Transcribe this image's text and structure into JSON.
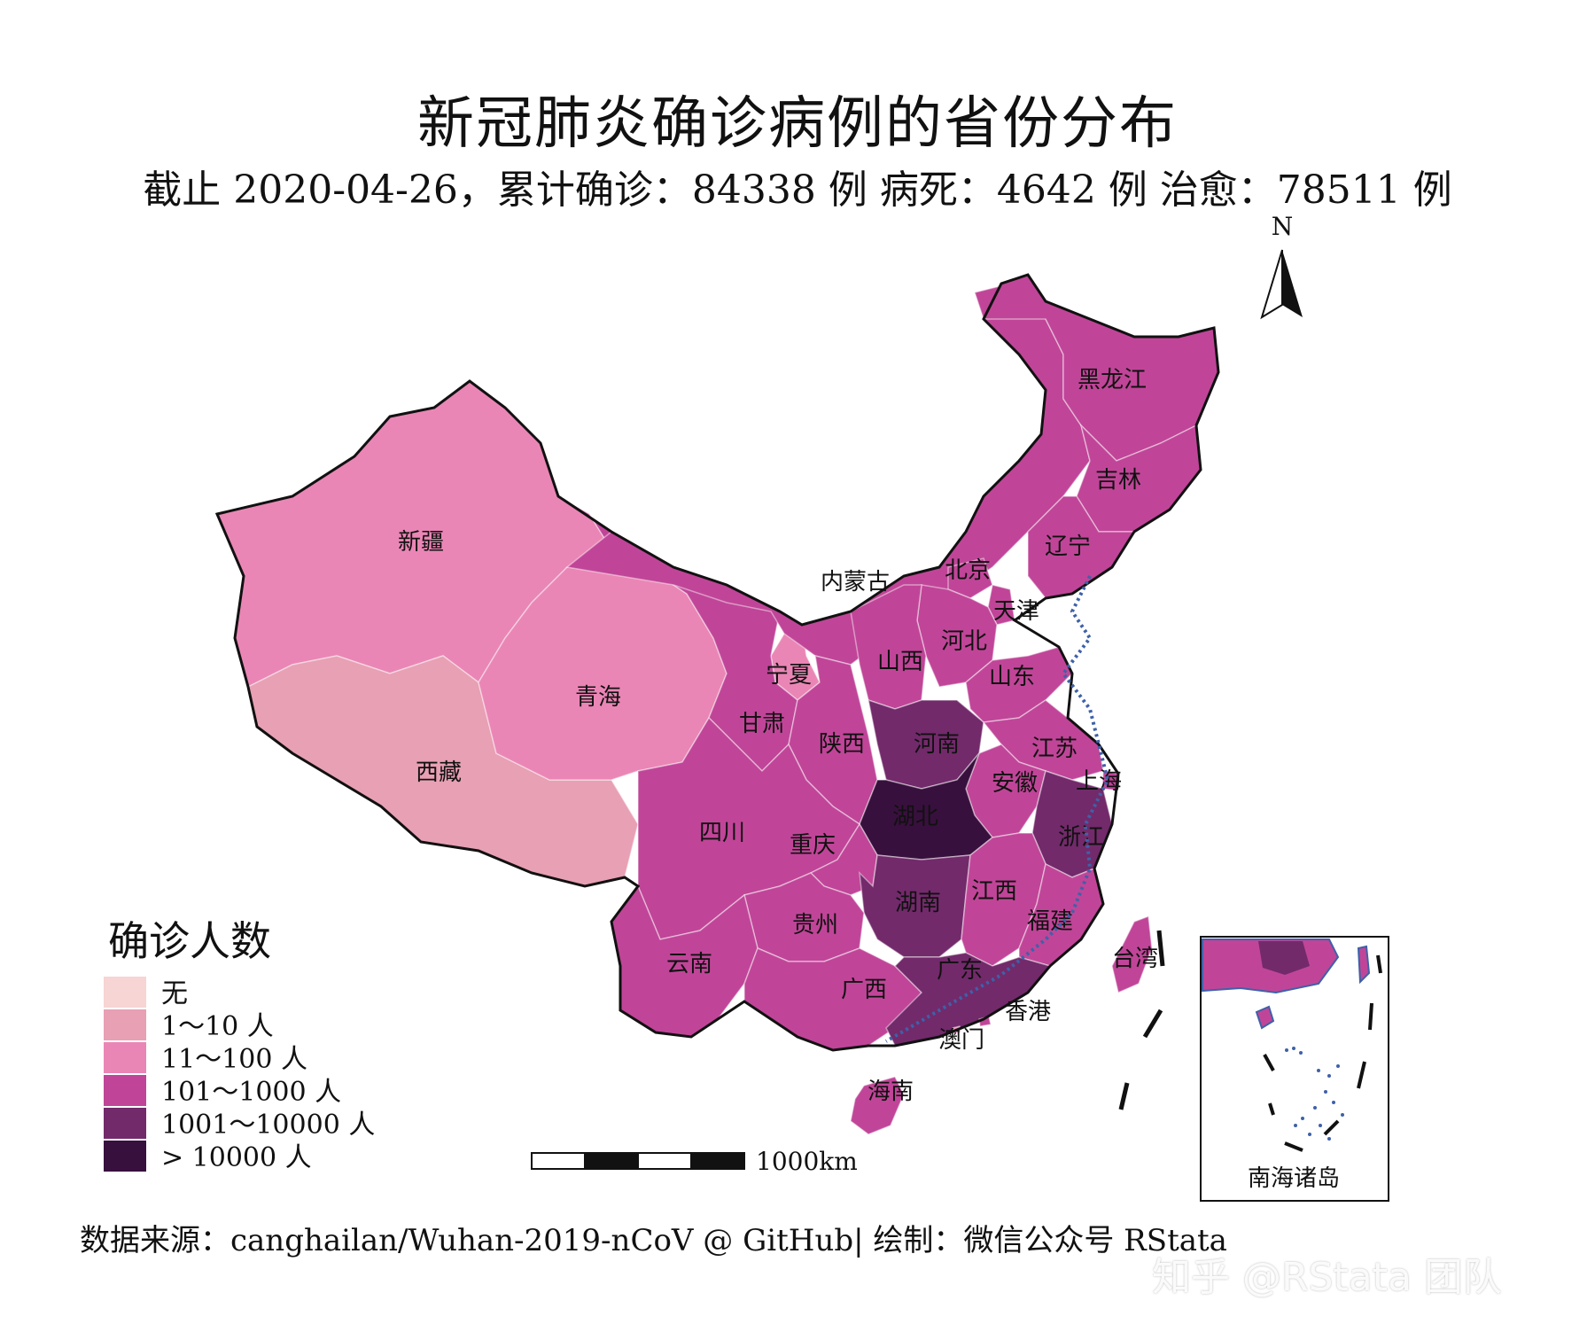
{
  "title": "新冠肺炎确诊病例的省份分布",
  "subtitle": "截止 2020-04-26，累计确诊：84338 例  病死：4642 例  治愈：78511 例",
  "source": "数据来源：canghailan/Wuhan-2019-nCoV @ GitHub| 绘制：微信公众号 RStata",
  "watermark": "知乎 @RStata 团队",
  "north_label": "N",
  "scale_label": "1000km",
  "inset_label": "南海诸岛",
  "legend": {
    "title": "确诊人数",
    "items": [
      {
        "label": "无",
        "color": "#f6d5d4"
      },
      {
        "label": "1～10 人",
        "color": "#e8a0b4"
      },
      {
        "label": "11～100 人",
        "color": "#ea86b5"
      },
      {
        "label": "101～1000 人",
        "color": "#c04598"
      },
      {
        "label": "1001～10000 人",
        "color": "#722a6b"
      },
      {
        "label": "> 10000 人",
        "color": "#38103d"
      }
    ]
  },
  "provinces": [
    {
      "name": "新疆",
      "class": "11～100 人"
    },
    {
      "name": "西藏",
      "class": "1～10 人"
    },
    {
      "name": "青海",
      "class": "11～100 人"
    },
    {
      "name": "宁夏",
      "class": "11～100 人"
    },
    {
      "name": "甘肃",
      "class": "101～1000 人"
    },
    {
      "name": "内蒙古",
      "class": "101～1000 人"
    },
    {
      "name": "黑龙江",
      "class": "101～1000 人"
    },
    {
      "name": "吉林",
      "class": "101～1000 人"
    },
    {
      "name": "辽宁",
      "class": "101～1000 人"
    },
    {
      "name": "北京",
      "class": "101～1000 人"
    },
    {
      "name": "天津",
      "class": "101～1000 人"
    },
    {
      "name": "河北",
      "class": "101～1000 人"
    },
    {
      "name": "山西",
      "class": "101～1000 人"
    },
    {
      "name": "山东",
      "class": "101～1000 人"
    },
    {
      "name": "陕西",
      "class": "101～1000 人"
    },
    {
      "name": "河南",
      "class": "1001～10000 人"
    },
    {
      "name": "江苏",
      "class": "101～1000 人"
    },
    {
      "name": "安徽",
      "class": "101～1000 人"
    },
    {
      "name": "上海",
      "class": "101～1000 人"
    },
    {
      "name": "湖北",
      "class": "> 10000 人"
    },
    {
      "name": "四川",
      "class": "101～1000 人"
    },
    {
      "name": "重庆",
      "class": "101～1000 人"
    },
    {
      "name": "浙江",
      "class": "1001～10000 人"
    },
    {
      "name": "湖南",
      "class": "1001～10000 人"
    },
    {
      "name": "江西",
      "class": "101～1000 人"
    },
    {
      "name": "福建",
      "class": "101～1000 人"
    },
    {
      "name": "贵州",
      "class": "101～1000 人"
    },
    {
      "name": "云南",
      "class": "101～1000 人"
    },
    {
      "name": "广西",
      "class": "101～1000 人"
    },
    {
      "name": "广东",
      "class": "1001～10000 人"
    },
    {
      "name": "台湾",
      "class": "101～1000 人"
    },
    {
      "name": "香港",
      "class": "101～1000 人"
    },
    {
      "name": "澳门",
      "class": "11～100 人"
    },
    {
      "name": "海南",
      "class": "101～1000 人"
    }
  ]
}
